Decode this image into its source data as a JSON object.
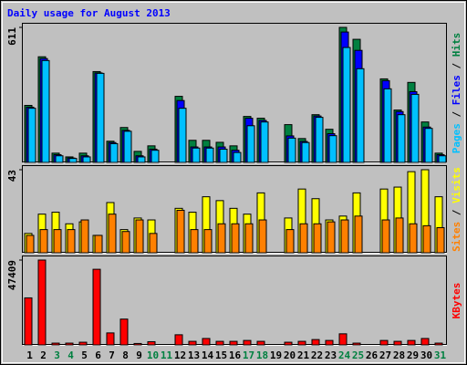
{
  "chart_data": [
    {
      "type": "bar",
      "title": "Daily usage for August 2013",
      "title_color": "#0000ff",
      "legend_separator": " / ",
      "series": [
        {
          "name": "Pages",
          "color": "#00c0ff",
          "values": [
            245,
            461,
            30,
            18,
            25,
            403,
            85,
            141,
            25,
            55,
            0,
            245,
            65,
            65,
            60,
            45,
            166,
            183,
            0,
            110,
            90,
            204,
            121,
            520,
            424,
            0,
            333,
            216,
            308,
            154,
            30
          ]
        },
        {
          "name": "Files",
          "color": "#0000ff",
          "values": [
            250,
            470,
            35,
            20,
            30,
            405,
            90,
            145,
            30,
            60,
            0,
            280,
            70,
            70,
            70,
            55,
            200,
            190,
            0,
            120,
            95,
            210,
            130,
            590,
            507,
            0,
            370,
            230,
            320,
            160,
            35
          ]
        },
        {
          "name": "Hits",
          "color": "#008040",
          "values": [
            258,
            478,
            42,
            25,
            42,
            411,
            96,
            158,
            50,
            75,
            0,
            299,
            100,
            100,
            91,
            75,
            208,
            200,
            0,
            171,
            108,
            216,
            150,
            611,
            557,
            0,
            378,
            237,
            362,
            183,
            42
          ]
        }
      ],
      "ylim": [
        0,
        611
      ],
      "yticks": [
        611
      ]
    },
    {
      "type": "bar",
      "legend_separator": " / ",
      "series": [
        {
          "name": "Sites",
          "color": "#ff8000",
          "values": [
            9,
            12,
            12,
            12,
            17,
            9,
            20,
            11,
            17,
            10,
            0,
            22,
            12,
            12,
            15,
            15,
            15,
            17,
            0,
            12,
            15,
            15,
            16,
            17,
            19,
            0,
            17,
            18,
            15,
            14,
            13
          ]
        },
        {
          "name": "Visits",
          "color": "#ffff00",
          "values": [
            10,
            20,
            21,
            15,
            16,
            9,
            26,
            12,
            18,
            17,
            0,
            23,
            21,
            29,
            27,
            23,
            20,
            31,
            0,
            18,
            33,
            28,
            17,
            19,
            31,
            0,
            33,
            34,
            42,
            43,
            29
          ]
        }
      ],
      "ylim": [
        0,
        43
      ],
      "yticks": [
        43
      ]
    },
    {
      "type": "bar",
      "categories": [
        "1",
        "2",
        "3",
        "4",
        "5",
        "6",
        "7",
        "8",
        "9",
        "10",
        "11",
        "12",
        "13",
        "14",
        "15",
        "16",
        "17",
        "18",
        "19",
        "20",
        "21",
        "22",
        "23",
        "24",
        "25",
        "26",
        "27",
        "28",
        "29",
        "30",
        "31"
      ],
      "label_colors": [
        "#000000",
        "#000000",
        "#008040",
        "#008040",
        "#000000",
        "#000000",
        "#000000",
        "#000000",
        "#000000",
        "#008040",
        "#008040",
        "#000000",
        "#000000",
        "#000000",
        "#000000",
        "#000000",
        "#008040",
        "#008040",
        "#000000",
        "#000000",
        "#000000",
        "#000000",
        "#000000",
        "#008040",
        "#008040",
        "#000000",
        "#000000",
        "#000000",
        "#000000",
        "#000000",
        "#008040"
      ],
      "series": [
        {
          "name": "KBytes",
          "color": "#ff0000",
          "values": [
            26281,
            47409,
            1000,
            1000,
            1500,
            42256,
            6700,
            14430,
            800,
            1800,
            0,
            5670,
            2000,
            3600,
            2000,
            2000,
            2500,
            2000,
            0,
            1500,
            2000,
            3000,
            2500,
            6200,
            1000,
            0,
            2500,
            2000,
            2500,
            3600,
            1000
          ]
        }
      ],
      "ylim": [
        0,
        47409
      ],
      "yticks": [
        47409
      ]
    }
  ]
}
